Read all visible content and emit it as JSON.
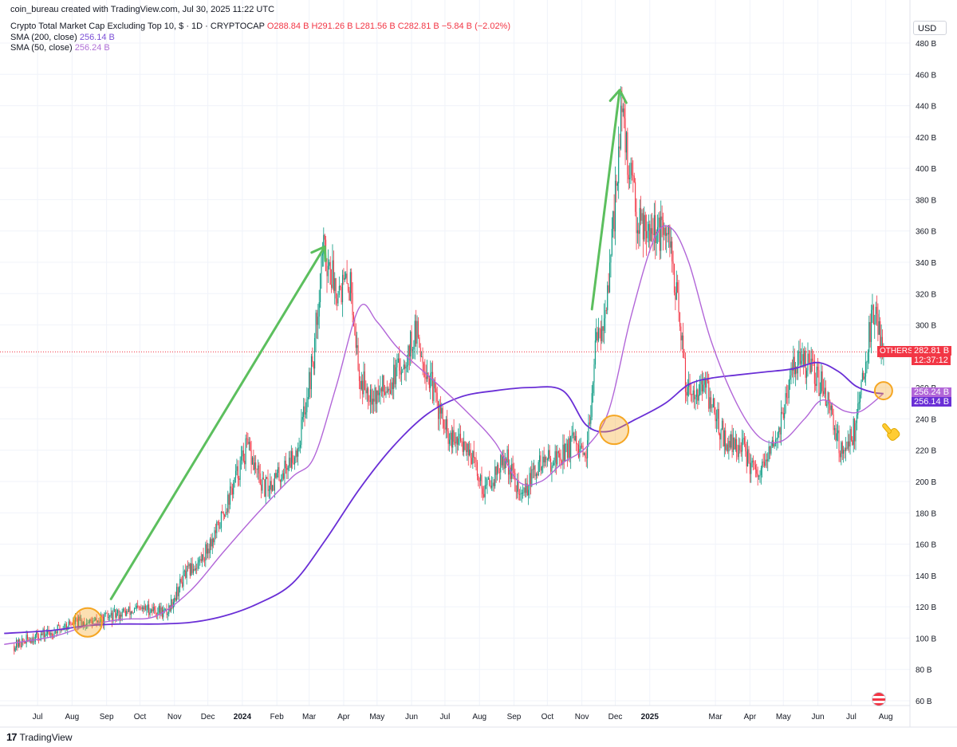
{
  "header": {
    "credit": "coin_bureau created with TradingView.com, Jul 30, 2025 11:22 UTC",
    "symbol": "Crypto Total Market Cap Excluding Top 10, $ · 1D · CRYPTOCAP",
    "open": "O288.84 B",
    "high": "H291.26 B",
    "low": "L281.56 B",
    "close": "C282.81 B",
    "change": "−5.84 B (−2.02%)",
    "sma200_label": "SMA (200, close)",
    "sma200_value": "256.14 B",
    "sma50_label": "SMA (50, close)",
    "sma50_value": "256.24 B"
  },
  "currency": "USD",
  "series_tag": "OTHERS",
  "last_price_label": "282.81 B",
  "countdown": "12:37:12",
  "sma50_tag": "256.24 B",
  "sma200_tag": "256.14 B",
  "branding": "TradingView",
  "colors": {
    "up": "#089981",
    "down": "#f23645",
    "sma200": "#6a2fd6",
    "sma50": "#b266d8",
    "arrow": "#5cbf5e",
    "circle": "#f5a623"
  },
  "chart_data": {
    "type": "candlestick",
    "ylim": [
      50,
      490
    ],
    "y_ticks": [
      60,
      80,
      100,
      120,
      140,
      160,
      180,
      200,
      220,
      240,
      260,
      280,
      300,
      320,
      340,
      360,
      380,
      400,
      420,
      440,
      460,
      480
    ],
    "y_tick_suffix": " B",
    "x_tick_labels": [
      "Jul",
      "Aug",
      "Sep",
      "Oct",
      "Nov",
      "Dec",
      "2024",
      "Feb",
      "Mar",
      "Apr",
      "May",
      "Jun",
      "Jul",
      "Aug",
      "Sep",
      "Oct",
      "Nov",
      "Dec",
      "2025",
      "Mar",
      "Apr",
      "May",
      "Jun",
      "Jul",
      "Aug"
    ],
    "x_tick_dates": [
      "2023-07-01",
      "2023-08-01",
      "2023-09-01",
      "2023-10-01",
      "2023-11-01",
      "2023-12-01",
      "2024-01-01",
      "2024-02-01",
      "2024-03-01",
      "2024-04-01",
      "2024-05-01",
      "2024-06-01",
      "2024-07-01",
      "2024-08-01",
      "2024-09-01",
      "2024-10-01",
      "2024-11-01",
      "2024-12-01",
      "2025-01-01",
      "2025-03-01",
      "2025-04-01",
      "2025-05-01",
      "2025-06-01",
      "2025-07-01",
      "2025-08-01"
    ],
    "last_price": 282.81,
    "price_anchors": [
      [
        "2023-06-10",
        95
      ],
      [
        "2023-06-25",
        100
      ],
      [
        "2023-07-15",
        104
      ],
      [
        "2023-08-01",
        110
      ],
      [
        "2023-08-20",
        110
      ],
      [
        "2023-09-15",
        116
      ],
      [
        "2023-10-10",
        119
      ],
      [
        "2023-10-25",
        116
      ],
      [
        "2023-11-10",
        140
      ],
      [
        "2023-11-25",
        150
      ],
      [
        "2023-12-10",
        170
      ],
      [
        "2023-12-25",
        200
      ],
      [
        "2024-01-05",
        222
      ],
      [
        "2024-01-20",
        195
      ],
      [
        "2024-02-05",
        205
      ],
      [
        "2024-02-20",
        222
      ],
      [
        "2024-03-05",
        280
      ],
      [
        "2024-03-13",
        350
      ],
      [
        "2024-03-25",
        325
      ],
      [
        "2024-04-08",
        325
      ],
      [
        "2024-04-15",
        265
      ],
      [
        "2024-05-01",
        255
      ],
      [
        "2024-05-20",
        270
      ],
      [
        "2024-06-05",
        295
      ],
      [
        "2024-06-15",
        270
      ],
      [
        "2024-07-05",
        225
      ],
      [
        "2024-07-20",
        225
      ],
      [
        "2024-08-05",
        195
      ],
      [
        "2024-08-25",
        215
      ],
      [
        "2024-09-07",
        190
      ],
      [
        "2024-09-25",
        212
      ],
      [
        "2024-10-10",
        215
      ],
      [
        "2024-10-25",
        225
      ],
      [
        "2024-11-05",
        210
      ],
      [
        "2024-11-12",
        280
      ],
      [
        "2024-11-25",
        320
      ],
      [
        "2024-12-06",
        435
      ],
      [
        "2024-12-20",
        370
      ],
      [
        "2025-01-05",
        362
      ],
      [
        "2025-01-20",
        350
      ],
      [
        "2025-02-03",
        260
      ],
      [
        "2025-02-20",
        260
      ],
      [
        "2025-03-10",
        225
      ],
      [
        "2025-03-25",
        222
      ],
      [
        "2025-04-08",
        200
      ],
      [
        "2025-04-25",
        228
      ],
      [
        "2025-05-12",
        278
      ],
      [
        "2025-05-25",
        272
      ],
      [
        "2025-06-10",
        255
      ],
      [
        "2025-06-22",
        218
      ],
      [
        "2025-07-05",
        235
      ],
      [
        "2025-07-15",
        285
      ],
      [
        "2025-07-22",
        310
      ],
      [
        "2025-07-30",
        282.81
      ]
    ],
    "series": [
      {
        "name": "SMA (200, close)",
        "points": [
          [
            "2023-06-01",
            103
          ],
          [
            "2023-07-15",
            105
          ],
          [
            "2023-08-15",
            108
          ],
          [
            "2023-09-15",
            109
          ],
          [
            "2023-10-15",
            109
          ],
          [
            "2023-11-15",
            110
          ],
          [
            "2023-12-15",
            114
          ],
          [
            "2024-01-15",
            122
          ],
          [
            "2024-02-15",
            135
          ],
          [
            "2024-03-15",
            162
          ],
          [
            "2024-04-15",
            195
          ],
          [
            "2024-05-15",
            222
          ],
          [
            "2024-06-15",
            243
          ],
          [
            "2024-07-15",
            254
          ],
          [
            "2024-08-15",
            258
          ],
          [
            "2024-09-15",
            260
          ],
          [
            "2024-10-15",
            258
          ],
          [
            "2024-11-05",
            236
          ],
          [
            "2024-11-25",
            232
          ],
          [
            "2024-12-20",
            240
          ],
          [
            "2025-01-15",
            250
          ],
          [
            "2025-02-05",
            262
          ],
          [
            "2025-02-25",
            266
          ],
          [
            "2025-03-20",
            268
          ],
          [
            "2025-04-15",
            270
          ],
          [
            "2025-05-10",
            272
          ],
          [
            "2025-06-01",
            276
          ],
          [
            "2025-06-20",
            270
          ],
          [
            "2025-07-05",
            261
          ],
          [
            "2025-07-20",
            257
          ],
          [
            "2025-07-30",
            256.14
          ]
        ]
      },
      {
        "name": "SMA (50, close)",
        "points": [
          [
            "2023-06-01",
            96
          ],
          [
            "2023-07-15",
            101
          ],
          [
            "2023-08-15",
            108
          ],
          [
            "2023-09-15",
            112
          ],
          [
            "2023-10-15",
            114
          ],
          [
            "2023-11-15",
            130
          ],
          [
            "2023-12-15",
            155
          ],
          [
            "2024-01-15",
            180
          ],
          [
            "2024-02-15",
            203
          ],
          [
            "2024-03-05",
            215
          ],
          [
            "2024-03-25",
            260
          ],
          [
            "2024-04-15",
            311
          ],
          [
            "2024-05-01",
            302
          ],
          [
            "2024-05-20",
            285
          ],
          [
            "2024-06-20",
            265
          ],
          [
            "2024-07-20",
            245
          ],
          [
            "2024-08-15",
            225
          ],
          [
            "2024-09-05",
            200
          ],
          [
            "2024-09-25",
            200
          ],
          [
            "2024-10-15",
            212
          ],
          [
            "2024-11-05",
            222
          ],
          [
            "2024-11-25",
            245
          ],
          [
            "2024-12-15",
            305
          ],
          [
            "2025-01-05",
            355
          ],
          [
            "2025-01-20",
            362
          ],
          [
            "2025-02-05",
            340
          ],
          [
            "2025-02-25",
            290
          ],
          [
            "2025-03-20",
            250
          ],
          [
            "2025-04-10",
            228
          ],
          [
            "2025-04-30",
            226
          ],
          [
            "2025-05-20",
            240
          ],
          [
            "2025-06-05",
            252
          ],
          [
            "2025-06-25",
            245
          ],
          [
            "2025-07-10",
            245
          ],
          [
            "2025-07-30",
            256.24
          ]
        ]
      }
    ],
    "annotations": {
      "arrows": [
        {
          "from": [
            "2023-09-05",
            125
          ],
          "to": [
            "2024-03-15",
            350
          ]
        },
        {
          "from": [
            "2024-11-10",
            310
          ],
          "to": [
            "2024-12-05",
            450
          ]
        }
      ],
      "circles": [
        {
          "center": [
            "2023-08-15",
            110
          ]
        },
        {
          "center": [
            "2024-11-30",
            233
          ]
        },
        {
          "center": [
            "2025-07-30",
            258
          ]
        }
      ],
      "hand": {
        "at": [
          "2025-07-30",
          238
        ]
      }
    }
  }
}
